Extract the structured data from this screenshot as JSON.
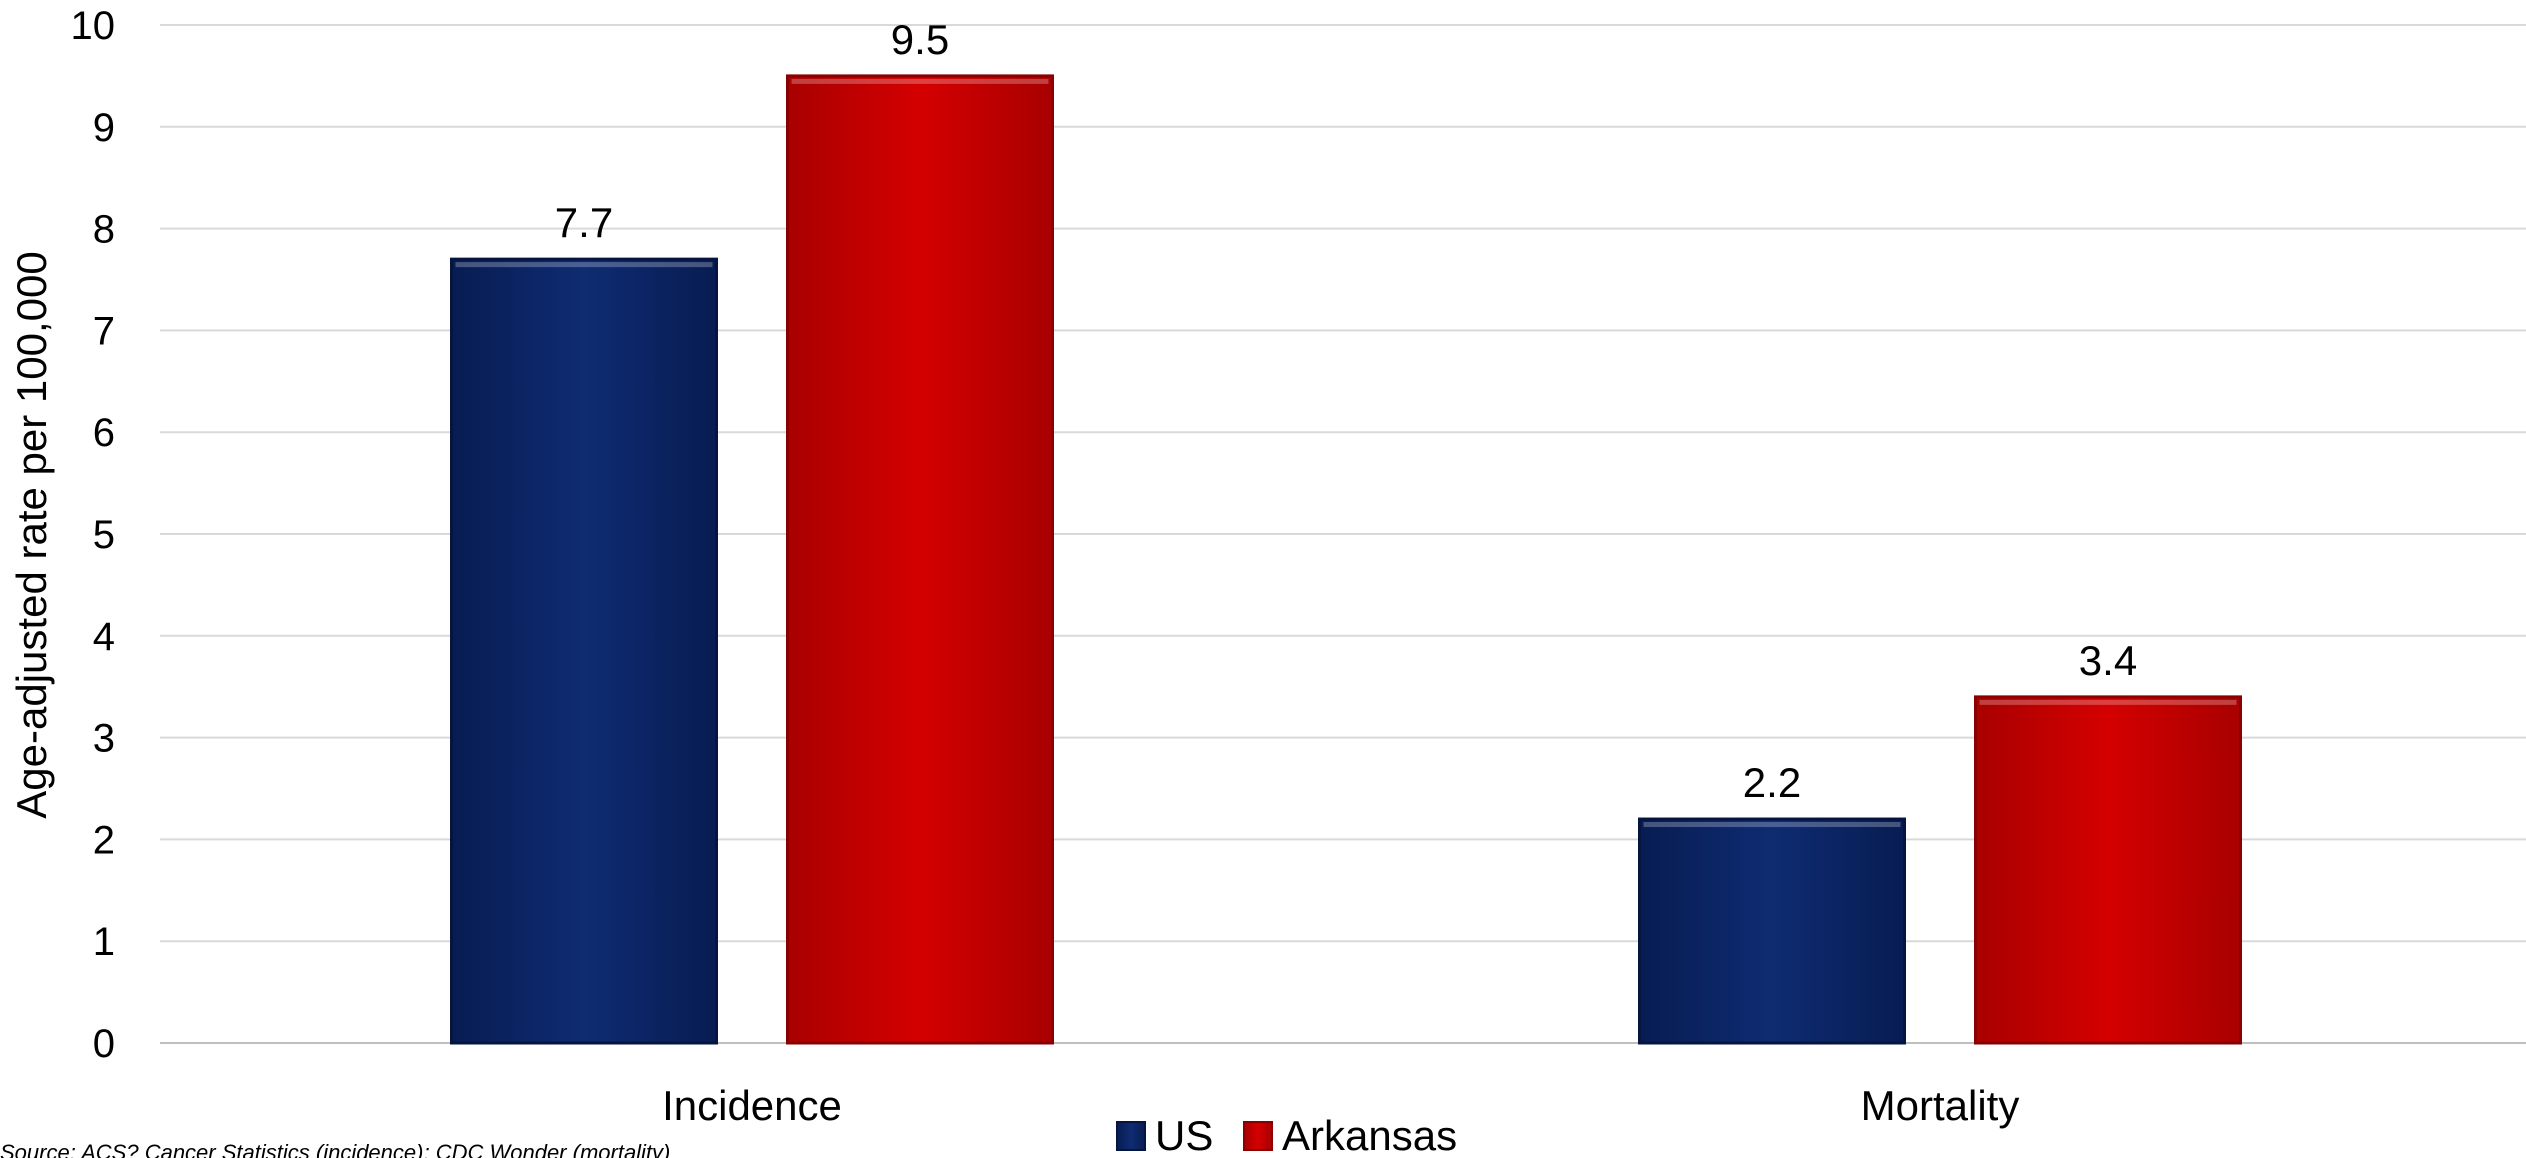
{
  "chart_data": {
    "type": "bar",
    "categories": [
      "Incidence",
      "Mortality"
    ],
    "series": [
      {
        "name": "US",
        "values": [
          7.7,
          2.2
        ],
        "color": "#0d2a6e"
      },
      {
        "name": "Arkansas",
        "values": [
          9.5,
          3.4
        ],
        "color": "#cc0000"
      }
    ],
    "ylabel": "Age-adjusted rate per 100,000",
    "ylim": [
      0,
      10
    ],
    "yticks": [
      "0",
      "1",
      "2",
      "3",
      "4",
      "5",
      "6",
      "7",
      "8",
      "9",
      "10"
    ],
    "data_labels": [
      [
        "7.7",
        "2.2"
      ],
      [
        "9.5",
        "3.4"
      ]
    ],
    "grid": true,
    "legend_position": "bottom",
    "source_note": "Source: ACS? Cancer Statistics (incidence); CDC Wonder (mortality)"
  }
}
